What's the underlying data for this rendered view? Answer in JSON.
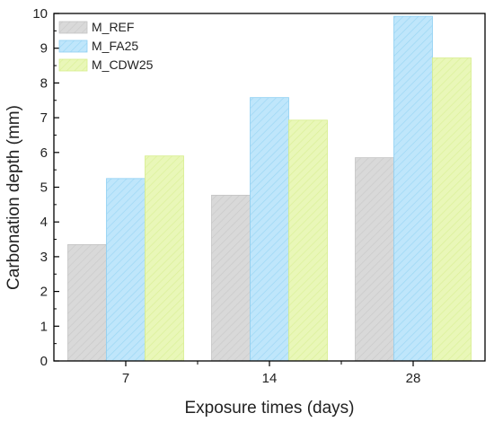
{
  "chart_data": {
    "type": "bar",
    "title": "",
    "xlabel": "Exposure times (days)",
    "ylabel": "Carbonation depth (mm)",
    "categories": [
      "7",
      "14",
      "28"
    ],
    "ylim": [
      0,
      10
    ],
    "yticks": [
      "0",
      "1",
      "2",
      "3",
      "4",
      "5",
      "6",
      "7",
      "8",
      "9",
      "10"
    ],
    "grid": false,
    "legend_position": "top-left",
    "series": [
      {
        "name": "M_REF",
        "values": [
          3.35,
          4.77,
          5.85
        ],
        "color": "#d9d9d9",
        "edge": "#c4c4c4"
      },
      {
        "name": "M_FA25",
        "values": [
          5.25,
          7.58,
          9.92
        ],
        "color": "#bfe6fb",
        "edge": "#8fd0f3"
      },
      {
        "name": "M_CDW25",
        "values": [
          5.9,
          6.93,
          8.72
        ],
        "color": "#e9f7b8",
        "edge": "#d6ee8c"
      }
    ]
  }
}
